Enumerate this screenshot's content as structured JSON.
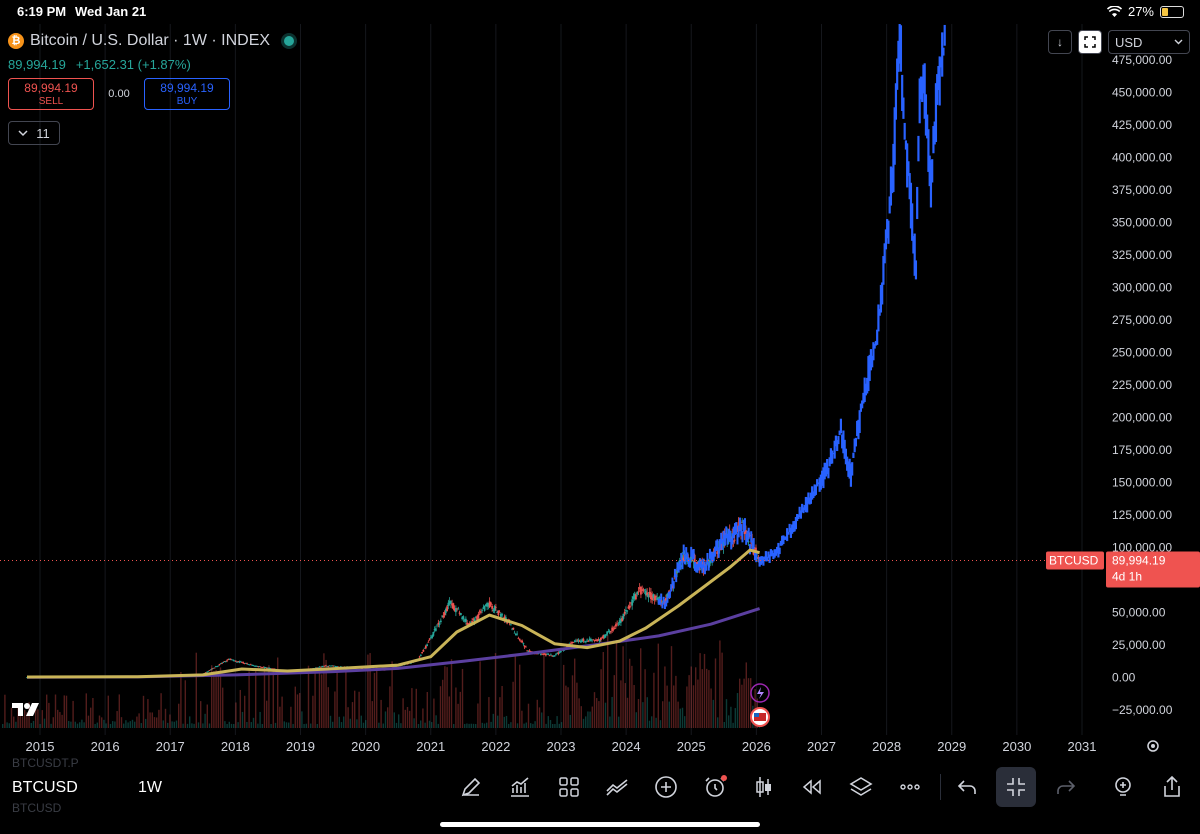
{
  "status": {
    "time": "6:19 PM",
    "date": "Wed Jan 21",
    "battery": "27%",
    "battery_level": 0.27
  },
  "header": {
    "symbol_title": "Bitcoin / U.S. Dollar · 1W · INDEX",
    "last": "89,994.19",
    "change": "+1,652.31",
    "change_pct": "(+1.87%)",
    "sell_price": "89,994.19",
    "sell_label": "SELL",
    "spread": "0.00",
    "buy_price": "89,994.19",
    "buy_label": "BUY",
    "indicators_count": "11",
    "currency": "USD"
  },
  "price_label": {
    "symbol": "BTCUSD",
    "price": "89,994.19",
    "countdown": "4d 1h"
  },
  "bottom": {
    "symbol": "BTCUSD",
    "timeframe": "1W",
    "ghost_above": "BTCUSDT.P",
    "ghost_below": "BTCUSD"
  },
  "colors": {
    "up": "#26a69a",
    "down": "#ef5350",
    "projection": "#2962ff",
    "ma_fast": "#c9b458",
    "ma_slow": "#5b3fa0",
    "price_line": "#ef5350"
  },
  "chart_data": {
    "type": "line",
    "x_axis_ticks": [
      "2015",
      "2016",
      "2017",
      "2018",
      "2019",
      "2020",
      "2021",
      "2022",
      "2023",
      "2024",
      "2025",
      "2026",
      "2027",
      "2028",
      "2029",
      "2030",
      "2031"
    ],
    "y_axis_ticks": [
      "475,000.00",
      "450,000.00",
      "425,000.00",
      "400,000.00",
      "375,000.00",
      "350,000.00",
      "325,000.00",
      "300,000.00",
      "275,000.00",
      "250,000.00",
      "225,000.00",
      "200,000.00",
      "175,000.00",
      "150,000.00",
      "125,000.00",
      "100,000.00",
      "75,000.00",
      "50,000.00",
      "25,000.00",
      "0.00",
      "−25,000.00"
    ],
    "ylim": [
      -30000,
      485000
    ],
    "xlim": [
      2014.8,
      2031.3
    ],
    "current_price": 89994.19,
    "series": [
      {
        "x": [
          2014.8,
          2015.5,
          2016.5,
          2017.0,
          2017.5,
          2017.9,
          2018.3,
          2018.9,
          2019.4,
          2019.9,
          2020.3,
          2020.8,
          2021.0,
          2021.3,
          2021.6,
          2021.9,
          2022.2,
          2022.5,
          2022.9,
          2023.2,
          2023.6,
          2023.9,
          2024.2,
          2024.6,
          2024.9,
          2025.2,
          2025.5,
          2025.8,
          2026.05
        ],
        "y": [
          300,
          250,
          500,
          1000,
          2500,
          14000,
          9000,
          4000,
          9000,
          7500,
          6000,
          13000,
          30000,
          58000,
          40000,
          57000,
          42000,
          20000,
          16500,
          28000,
          29000,
          42000,
          67000,
          58000,
          96000,
          84000,
          105000,
          115000,
          89994
        ]
      },
      {
        "x": [
          2014.8,
          2016.5,
          2017.5,
          2018.1,
          2018.8,
          2019.6,
          2020.5,
          2021.0,
          2021.4,
          2021.9,
          2022.4,
          2022.9,
          2023.4,
          2023.9,
          2024.3,
          2024.8,
          2025.2,
          2025.6,
          2025.9,
          2026.05
        ],
        "y": [
          400,
          600,
          2000,
          6500,
          5000,
          7000,
          9500,
          16000,
          35000,
          48000,
          40000,
          26000,
          23000,
          28000,
          38000,
          55000,
          70000,
          85000,
          98000,
          96000
        ]
      },
      {
        "x": [
          2014.8,
          2016.5,
          2018.0,
          2019.5,
          2020.5,
          2021.5,
          2022.5,
          2023.5,
          2024.5,
          2025.3,
          2026.05
        ],
        "y": [
          200,
          500,
          2000,
          4500,
          7000,
          12500,
          18500,
          25000,
          32000,
          41000,
          53000
        ]
      },
      {
        "x": [
          2026.05,
          2026.3,
          2026.6,
          2026.9,
          2027.1,
          2027.3,
          2027.45,
          2027.55,
          2027.7,
          2027.85,
          2027.95,
          2028.1,
          2028.2,
          2028.27,
          2028.35,
          2028.45,
          2028.5,
          2028.58,
          2028.68,
          2028.8,
          2028.9
        ],
        "y": [
          89994,
          95000,
          120000,
          145000,
          160000,
          190000,
          155000,
          190000,
          230000,
          260000,
          310000,
          390000,
          500000,
          420000,
          380000,
          310000,
          440000,
          460000,
          380000,
          460000,
          490000
        ]
      }
    ]
  }
}
